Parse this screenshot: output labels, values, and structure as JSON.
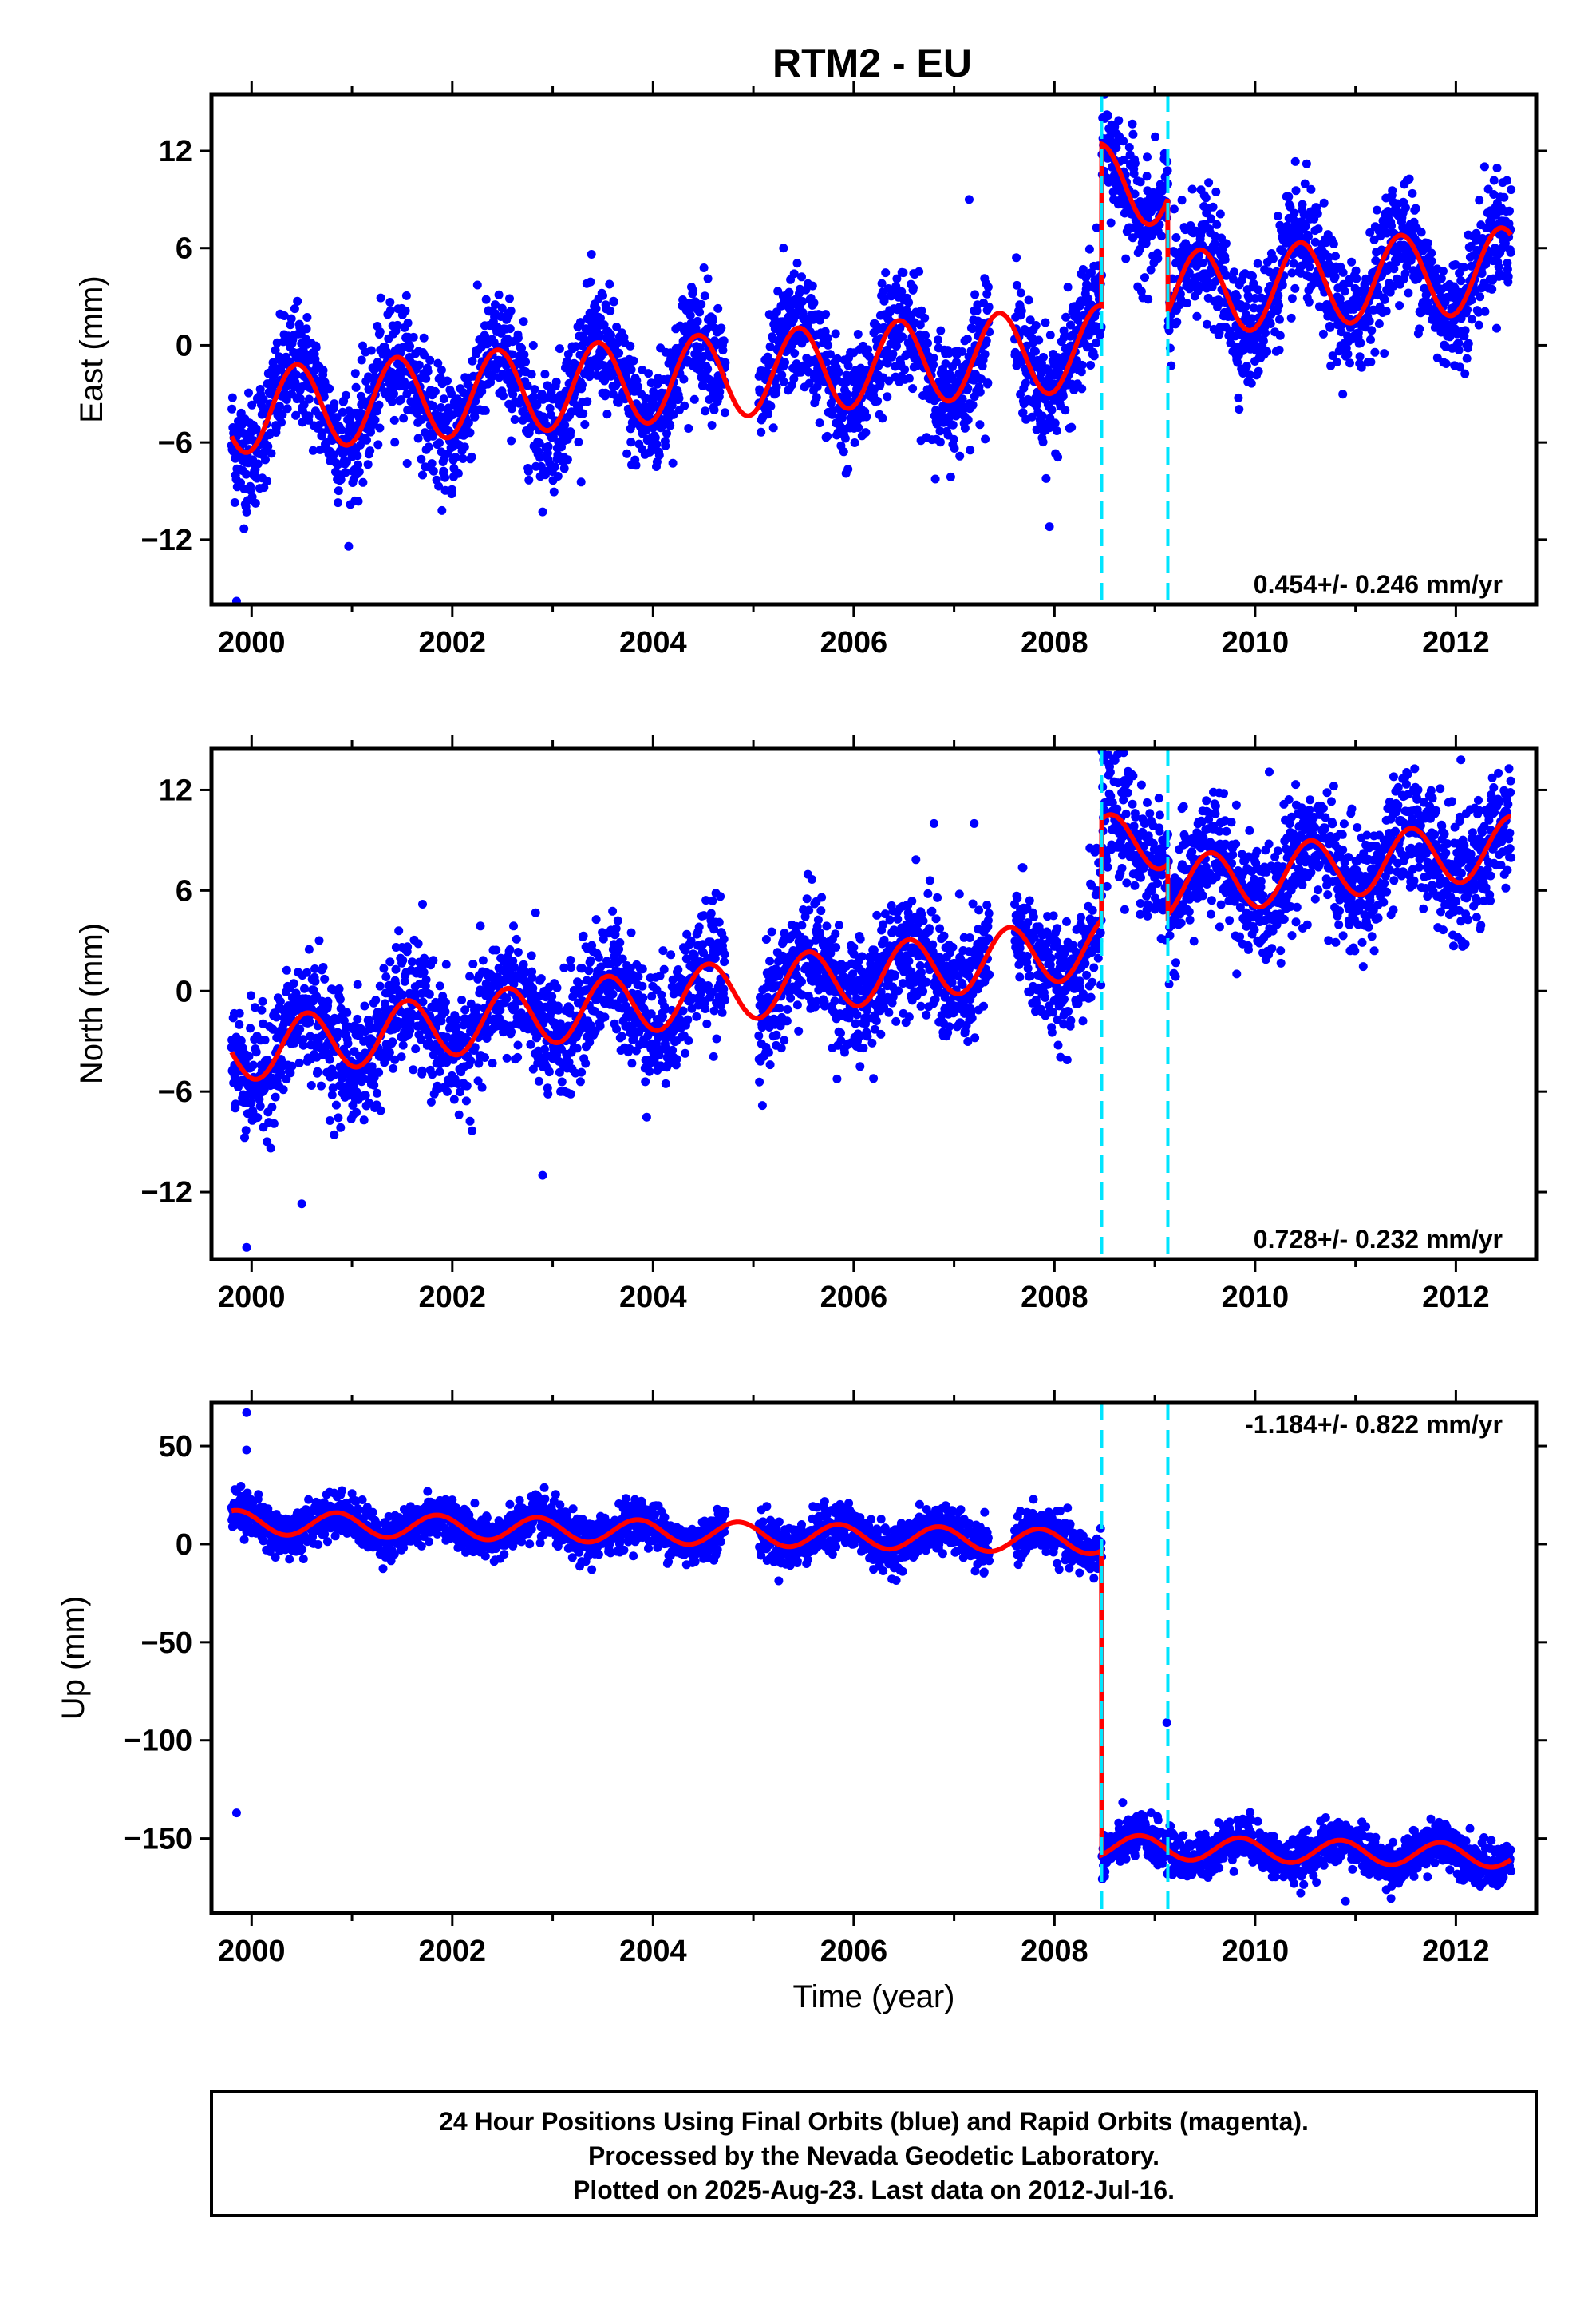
{
  "title": "RTM2 - EU",
  "colors": {
    "points": "#0000ff",
    "model": "#ff0000",
    "breaks": "#00e5ff",
    "frame": "#000000"
  },
  "chart_data": [
    {
      "type": "scatter",
      "ylabel": "East (mm)",
      "xlabel": "",
      "xlim": [
        1999.6,
        2012.8
      ],
      "ylim": [
        -16,
        15.5
      ],
      "xticks": [
        "2000",
        "2002",
        "2004",
        "2006",
        "2008",
        "2010",
        "2012"
      ],
      "yticks": [
        "12",
        "6",
        "0",
        "-6",
        "-12"
      ],
      "rate_text": "0.454+/- 0.246 mm/yr",
      "rate_position": "bottom-right",
      "breaks": [
        2008.47,
        2009.13
      ],
      "model": {
        "offset": -4.0,
        "trend": 0.454,
        "amplitude": 2.6,
        "phase": 0.2,
        "jumps": [
          [
            2008.47,
            10.0
          ],
          [
            2009.13,
            -7.0
          ]
        ]
      },
      "scatter_sigma": 1.8,
      "outliers": [
        [
          1999.85,
          -15.8
        ],
        [
          1999.95,
          -10.3
        ],
        [
          2007.95,
          -11.2
        ],
        [
          2007.15,
          9.0
        ],
        [
          2005.3,
          6.0
        ],
        [
          2008.5,
          14.0
        ]
      ],
      "data_range": [
        1999.8,
        2012.55
      ]
    },
    {
      "type": "scatter",
      "ylabel": "North (mm)",
      "xlabel": "",
      "xlim": [
        1999.6,
        2012.8
      ],
      "ylim": [
        -16,
        14.5
      ],
      "xticks": [
        "2000",
        "2002",
        "2004",
        "2006",
        "2008",
        "2010",
        "2012"
      ],
      "yticks": [
        "12",
        "6",
        "0",
        "-6",
        "-12"
      ],
      "rate_text": "0.728+/- 0.232 mm/yr",
      "rate_position": "bottom-right",
      "breaks": [
        2008.47,
        2009.13
      ],
      "model": {
        "offset": -3.5,
        "trend": 0.728,
        "amplitude": 1.8,
        "phase": 0.3,
        "jumps": [
          [
            2008.47,
            6.0
          ],
          [
            2009.13,
            -3.0
          ]
        ]
      },
      "scatter_sigma": 1.8,
      "outliers": [
        [
          1999.95,
          -15.3
        ],
        [
          2000.5,
          -12.7
        ],
        [
          2002.9,
          -11.0
        ],
        [
          2006.8,
          10.0
        ],
        [
          2007.2,
          10.0
        ],
        [
          2008.5,
          14.0
        ],
        [
          2012.05,
          13.8
        ]
      ],
      "data_range": [
        1999.8,
        2012.55
      ]
    },
    {
      "type": "scatter",
      "ylabel": "Up (mm)",
      "xlabel": "Time (year)",
      "xlim": [
        1999.6,
        2012.8
      ],
      "ylim": [
        -188,
        72
      ],
      "xticks": [
        "2000",
        "2002",
        "2004",
        "2006",
        "2008",
        "2010",
        "2012"
      ],
      "yticks": [
        "50",
        "0",
        "-50",
        "-100",
        "-150"
      ],
      "rate_text": "-1.184+/- 0.822 mm/yr",
      "rate_position": "top-right",
      "breaks": [
        2008.47,
        2009.13
      ],
      "model": {
        "offset": 11.0,
        "trend": -1.184,
        "amplitude": 6.0,
        "phase": 0.6,
        "jumps": [
          [
            2008.47,
            -155.0
          ]
        ]
      },
      "scatter_sigma": 5.5,
      "outliers": [
        [
          1999.85,
          -137.0
        ],
        [
          1999.95,
          67.0
        ],
        [
          1999.95,
          48.0
        ],
        [
          2009.12,
          -91.0
        ],
        [
          2010.9,
          -182.0
        ]
      ],
      "data_range": [
        1999.8,
        2012.55
      ]
    }
  ],
  "footer": {
    "line1": "24 Hour Positions Using Final Orbits (blue) and Rapid Orbits (magenta).",
    "line2": "Processed by the Nevada Geodetic Laboratory.",
    "line3": "Plotted on 2025-Aug-23. Last data on 2012-Jul-16."
  }
}
